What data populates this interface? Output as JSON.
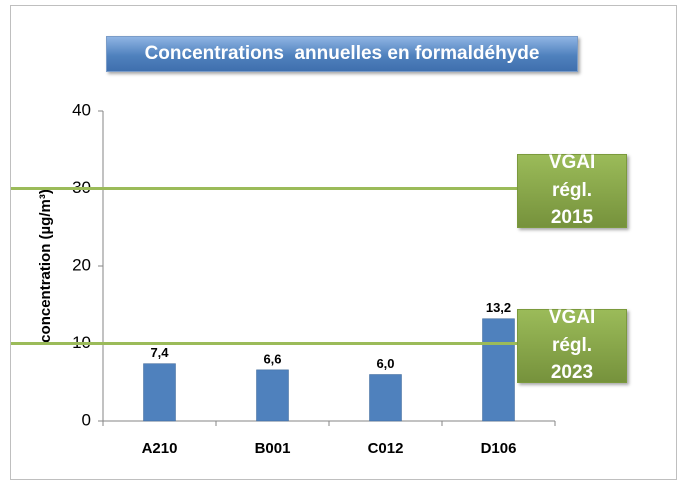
{
  "chart_data": {
    "type": "bar",
    "title": "Concentrations  annuelles en formaldéhyde",
    "y_label": "concentration  (µg/m³)",
    "categories": [
      "A210",
      "B001",
      "C012",
      "D106"
    ],
    "values": [
      7.4,
      6.6,
      6.0,
      13.2
    ],
    "value_labels": [
      "7,4",
      "6,6",
      "6,0",
      "13,2"
    ],
    "color": "#4f81bd",
    "ylim": [
      0,
      40
    ],
    "yticks": [
      0,
      10,
      20,
      30,
      40
    ],
    "grid": false,
    "reference_lines": [
      {
        "value": 30,
        "label": "VGAI régl. 2015",
        "color": "#9bbb59"
      },
      {
        "value": 10,
        "label": "VGAI régl. 2023",
        "color": "#9bbb59"
      }
    ]
  }
}
